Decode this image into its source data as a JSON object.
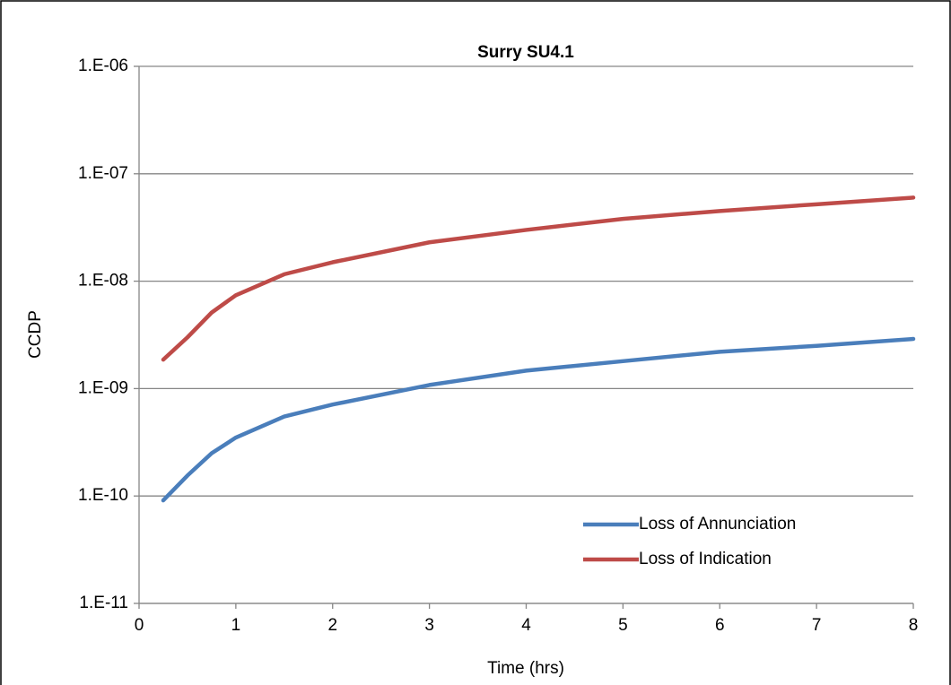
{
  "chart_data": {
    "type": "line",
    "title": "Surry SU4.1",
    "x_label": "Time (hrs)",
    "y_label": "CCDP",
    "y_log": true,
    "grid": true,
    "legend": "lower right",
    "xlim": [
      0,
      8
    ],
    "xticks": [
      0,
      1,
      2,
      3,
      4,
      5,
      6,
      7,
      8
    ],
    "ylim": [
      1e-11,
      1e-06
    ],
    "yticks": [
      {
        "value": 1e-11,
        "label": "1.E-11"
      },
      {
        "value": 1e-10,
        "label": "1.E-10"
      },
      {
        "value": 1e-09,
        "label": "1.E-09"
      },
      {
        "value": 1e-08,
        "label": "1.E-08"
      },
      {
        "value": 1e-07,
        "label": "1.E-07"
      },
      {
        "value": 1e-06,
        "label": "1.E-06"
      }
    ],
    "x": [
      0.25,
      0.5,
      0.75,
      1,
      1.5,
      2,
      3,
      4,
      5,
      6,
      7,
      8
    ],
    "series": [
      {
        "name": "Loss of Annunciation",
        "color": "#4a7ebb",
        "values": [
          9.1e-11,
          1.55e-10,
          2.5e-10,
          3.5e-10,
          5.5e-10,
          7.1e-10,
          1.08e-09,
          1.47e-09,
          1.8e-09,
          2.2e-09,
          2.5e-09,
          2.9e-09
        ]
      },
      {
        "name": "Loss of Indication",
        "color": "#be4b48",
        "values": [
          1.86e-09,
          3e-09,
          5.1e-09,
          7.4e-09,
          1.16e-08,
          1.5e-08,
          2.3e-08,
          3e-08,
          3.8e-08,
          4.5e-08,
          5.2e-08,
          6e-08
        ]
      }
    ]
  }
}
